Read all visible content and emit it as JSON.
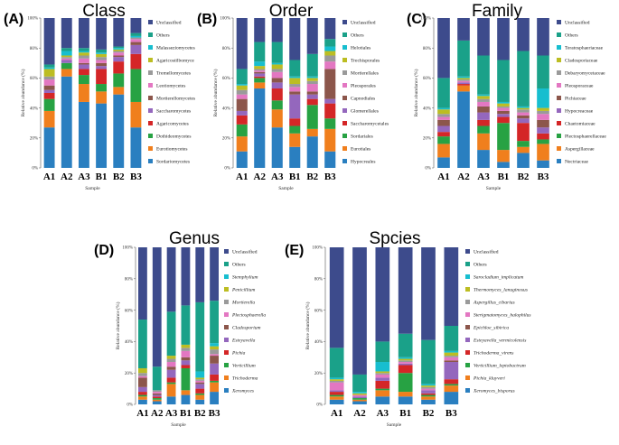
{
  "chart_data": [
    {
      "panel": "(A)",
      "title": "Class",
      "type": "stacked-bar",
      "xlabel": "Sample",
      "ylabel": "Relative abundance (%)",
      "yticks": [
        "0%",
        "20%",
        "40%",
        "60%",
        "80%",
        "100%"
      ],
      "ylim": [
        0,
        100
      ],
      "categories": [
        "A1",
        "A2",
        "A3",
        "B1",
        "B2",
        "B3"
      ],
      "series": [
        {
          "name": "Sordariomycetes",
          "color": "#2a7fc0",
          "values": [
            27,
            61,
            44,
            43,
            49,
            27
          ]
        },
        {
          "name": "Eurotiomycetes",
          "color": "#f07f1d",
          "values": [
            11,
            5,
            12,
            8,
            5,
            17
          ]
        },
        {
          "name": "Dothideomycetes",
          "color": "#27a243",
          "values": [
            8,
            4,
            6,
            5,
            9,
            22
          ]
        },
        {
          "name": "Agaricomycetes",
          "color": "#d42627",
          "values": [
            4,
            0,
            4,
            10,
            8,
            10
          ]
        },
        {
          "name": "Saccharomycetes",
          "color": "#9467bd",
          "values": [
            2,
            2,
            3,
            2,
            3,
            6
          ]
        },
        {
          "name": "Mortierellomycetes",
          "color": "#8c564b",
          "values": [
            3,
            0,
            1,
            2,
            1,
            2
          ]
        },
        {
          "name": "Leotiomycetes",
          "color": "#e377c2",
          "values": [
            4,
            1,
            3,
            2,
            2,
            2
          ]
        },
        {
          "name": "Tremellomycetes",
          "color": "#9a9a9a",
          "values": [
            2,
            1,
            2,
            2,
            1,
            1
          ]
        },
        {
          "name": "Agaricostilbomyce",
          "color": "#bcbd22",
          "values": [
            5,
            1,
            2,
            2,
            1,
            0
          ]
        },
        {
          "name": "Malasseziomycetes",
          "color": "#17becf",
          "values": [
            1,
            3,
            1,
            1,
            1,
            1
          ]
        },
        {
          "name": "Others",
          "color": "#1aa189",
          "values": [
            2,
            2,
            2,
            2,
            1,
            2
          ]
        },
        {
          "name": "Unclassified",
          "color": "#3d4b8c",
          "values": [
            31,
            20,
            20,
            21,
            19,
            10
          ]
        }
      ]
    },
    {
      "panel": "(B)",
      "title": "Order",
      "type": "stacked-bar",
      "xlabel": "Sample",
      "ylabel": "Relative abundance (%)",
      "yticks": [
        "0%",
        "20%",
        "40%",
        "60%",
        "80%",
        "100%"
      ],
      "ylim": [
        0,
        100
      ],
      "categories": [
        "A1",
        "A2",
        "A3",
        "B1",
        "B2",
        "B3"
      ],
      "series": [
        {
          "name": "Hypocreales",
          "color": "#2a7fc0",
          "values": [
            11,
            53,
            27,
            14,
            21,
            11
          ]
        },
        {
          "name": "Eurotiales",
          "color": "#f07f1d",
          "values": [
            10,
            4,
            12,
            9,
            5,
            15
          ]
        },
        {
          "name": "Sordariales",
          "color": "#27a243",
          "values": [
            8,
            3,
            6,
            5,
            16,
            7
          ]
        },
        {
          "name": "Saccharomycetales",
          "color": "#d42627",
          "values": [
            6,
            1,
            8,
            5,
            4,
            10
          ]
        },
        {
          "name": "Glomerellales",
          "color": "#9467bd",
          "values": [
            3,
            2,
            4,
            16,
            3,
            3
          ]
        },
        {
          "name": "Capnodiales",
          "color": "#8c564b",
          "values": [
            8,
            1,
            3,
            2,
            2,
            20
          ]
        },
        {
          "name": "Pleosporales",
          "color": "#e377c2",
          "values": [
            3,
            1,
            4,
            3,
            5,
            5
          ]
        },
        {
          "name": "Mortierellales",
          "color": "#9a9a9a",
          "values": [
            3,
            1,
            2,
            2,
            2,
            4
          ]
        },
        {
          "name": "Trechisporales",
          "color": "#bcbd22",
          "values": [
            3,
            2,
            3,
            4,
            2,
            3
          ]
        },
        {
          "name": "Helotiales",
          "color": "#17becf",
          "values": [
            1,
            3,
            1,
            1,
            1,
            3
          ]
        },
        {
          "name": "Others",
          "color": "#1aa189",
          "values": [
            10,
            13,
            14,
            11,
            15,
            5
          ]
        },
        {
          "name": "Unclassified",
          "color": "#3d4b8c",
          "values": [
            34,
            16,
            16,
            28,
            24,
            14
          ]
        }
      ]
    },
    {
      "panel": "(C)",
      "title": "Family",
      "type": "stacked-bar",
      "xlabel": "Sample",
      "ylabel": "Relative abundance (%)",
      "yticks": [
        "0%",
        "20%",
        "40%",
        "60%",
        "80%",
        "100%"
      ],
      "ylim": [
        0,
        100
      ],
      "categories": [
        "A1",
        "A2",
        "A3",
        "B1",
        "B2",
        "B3"
      ],
      "series": [
        {
          "name": "Nectriaceae",
          "color": "#2a7fc0",
          "values": [
            7,
            51,
            12,
            4,
            10,
            5
          ]
        },
        {
          "name": "Aspergillaceae",
          "color": "#f07f1d",
          "values": [
            9,
            4,
            11,
            8,
            4,
            11
          ]
        },
        {
          "name": "Plectosphaerellaceae",
          "color": "#27a243",
          "values": [
            5,
            0,
            5,
            18,
            4,
            3
          ]
        },
        {
          "name": "Chaetomiaceae",
          "color": "#d42627",
          "values": [
            3,
            1,
            4,
            4,
            12,
            4
          ]
        },
        {
          "name": "Hypocreaceae",
          "color": "#9467bd",
          "values": [
            4,
            1,
            5,
            2,
            3,
            4
          ]
        },
        {
          "name": "Pichiaceae",
          "color": "#8c564b",
          "values": [
            4,
            0,
            4,
            2,
            2,
            5
          ]
        },
        {
          "name": "Pleosporaceae",
          "color": "#e377c2",
          "values": [
            2,
            1,
            3,
            2,
            2,
            4
          ]
        },
        {
          "name": "Debaryomycetaceae",
          "color": "#9a9a9a",
          "values": [
            2,
            1,
            2,
            1,
            2,
            2
          ]
        },
        {
          "name": "Cladosporiaceae",
          "color": "#bcbd22",
          "values": [
            3,
            1,
            2,
            2,
            1,
            2
          ]
        },
        {
          "name": "Teratosphaeriaceae",
          "color": "#17becf",
          "values": [
            1,
            1,
            1,
            1,
            1,
            13
          ]
        },
        {
          "name": "Others",
          "color": "#1aa189",
          "values": [
            20,
            24,
            26,
            28,
            37,
            22
          ]
        },
        {
          "name": "Unclassified",
          "color": "#3d4b8c",
          "values": [
            40,
            15,
            25,
            28,
            22,
            25
          ]
        }
      ]
    },
    {
      "panel": "(D)",
      "title": "Genus",
      "type": "stacked-bar",
      "xlabel": "Sample",
      "ylabel": "Relative abundance (%)",
      "yticks": [
        "0%",
        "20%",
        "40%",
        "60%",
        "80%",
        "100%"
      ],
      "ylim": [
        0,
        100
      ],
      "categories": [
        "A1",
        "A2",
        "A3",
        "B1",
        "B2",
        "B3"
      ],
      "series": [
        {
          "name": "Xeromyces",
          "color": "#2a7fc0",
          "values": [
            3,
            2,
            5,
            6,
            3,
            8
          ]
        },
        {
          "name": "Trichoderma",
          "color": "#f07f1d",
          "values": [
            2,
            1,
            8,
            3,
            3,
            6
          ]
        },
        {
          "name": "Verticillium",
          "color": "#27a243",
          "values": [
            1,
            1,
            1,
            14,
            1,
            1
          ]
        },
        {
          "name": "Pichia",
          "color": "#d42627",
          "values": [
            2,
            1,
            3,
            2,
            3,
            4
          ]
        },
        {
          "name": "Esteyavella",
          "color": "#9467bd",
          "values": [
            3,
            1,
            5,
            3,
            3,
            7
          ]
        },
        {
          "name": "Cladosporium",
          "color": "#8c564b",
          "values": [
            6,
            1,
            2,
            2,
            1,
            5
          ]
        },
        {
          "name": "Plectosphaerella",
          "color": "#e377c2",
          "values": [
            1,
            1,
            3,
            4,
            1,
            1
          ]
        },
        {
          "name": "Mortierella",
          "color": "#9a9a9a",
          "values": [
            2,
            1,
            2,
            2,
            1,
            3
          ]
        },
        {
          "name": "Penicillium",
          "color": "#bcbd22",
          "values": [
            3,
            0,
            2,
            2,
            1,
            2
          ]
        },
        {
          "name": "Stemphylium",
          "color": "#17becf",
          "values": [
            0,
            0,
            0,
            0,
            4,
            2
          ]
        },
        {
          "name": "Others",
          "color": "#1aa189",
          "values": [
            31,
            15,
            28,
            25,
            44,
            27
          ]
        },
        {
          "name": "Unclassified",
          "color": "#3d4b8c",
          "values": [
            46,
            76,
            41,
            37,
            35,
            34
          ]
        }
      ]
    },
    {
      "panel": "(E)",
      "title": "Spcies",
      "type": "stacked-bar",
      "xlabel": "Sample",
      "ylabel": "Relative abundance (%)",
      "yticks": [
        "0%",
        "20%",
        "40%",
        "60%",
        "80%",
        "100%"
      ],
      "ylim": [
        0,
        100
      ],
      "categories": [
        "A1",
        "A2",
        "A3",
        "B1",
        "B2",
        "B3"
      ],
      "series": [
        {
          "name": "Xeromyces_bisporus",
          "color": "#2a7fc0",
          "values": [
            3,
            2,
            5,
            5,
            3,
            8
          ]
        },
        {
          "name": "Pichia_kluyveri",
          "color": "#f07f1d",
          "values": [
            2,
            1,
            4,
            3,
            2,
            4
          ]
        },
        {
          "name": "Verticillium_leptobactrum",
          "color": "#27a243",
          "values": [
            1,
            1,
            1,
            12,
            1,
            1
          ]
        },
        {
          "name": "Trichoderma_virens",
          "color": "#d42627",
          "values": [
            2,
            0,
            5,
            5,
            1,
            3
          ]
        },
        {
          "name": "Esteyavella_vermicolensis",
          "color": "#9467bd",
          "values": [
            1,
            1,
            2,
            1,
            2,
            11
          ]
        },
        {
          "name": "Epichloe_sibirica",
          "color": "#8c564b",
          "values": [
            0,
            0,
            0,
            0,
            0,
            1
          ]
        },
        {
          "name": "Sterigmatomyces_halophilus",
          "color": "#e377c2",
          "values": [
            5,
            1,
            2,
            1,
            1,
            2
          ]
        },
        {
          "name": "Aspergillus_cibarius",
          "color": "#9a9a9a",
          "values": [
            1,
            0,
            1,
            1,
            1,
            1
          ]
        },
        {
          "name": "Thermomyces_lanuginosus",
          "color": "#bcbd22",
          "values": [
            1,
            1,
            1,
            1,
            1,
            2
          ]
        },
        {
          "name": "Sarocladium_implicatum",
          "color": "#17becf",
          "values": [
            1,
            1,
            6,
            1,
            1,
            1
          ]
        },
        {
          "name": "Others",
          "color": "#1aa189",
          "values": [
            19,
            11,
            13,
            15,
            28,
            16
          ]
        },
        {
          "name": "Unclassified",
          "color": "#3d4b8c",
          "values": [
            64,
            81,
            60,
            55,
            59,
            50
          ]
        }
      ]
    }
  ]
}
